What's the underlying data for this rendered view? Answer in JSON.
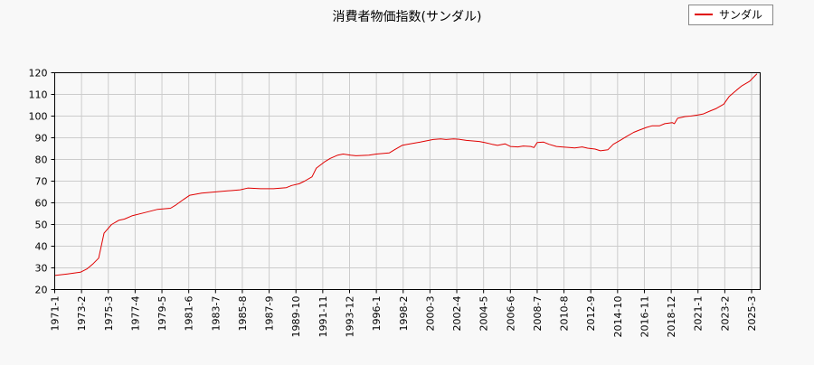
{
  "chart_data": {
    "type": "line",
    "title": "消費者物価指数(サンダル)",
    "xlabel": "",
    "ylabel": "",
    "ylim": [
      20,
      120
    ],
    "y_ticks": [
      20,
      30,
      40,
      50,
      60,
      70,
      80,
      90,
      100,
      110,
      120
    ],
    "x_range": [
      "1971-01",
      "2025-08"
    ],
    "x_tick_labels": [
      "1971-1",
      "1973-2",
      "1975-3",
      "1977-4",
      "1979-5",
      "1981-6",
      "1983-7",
      "1985-8",
      "1987-9",
      "1989-10",
      "1991-11",
      "1993-12",
      "1996-1",
      "1998-2",
      "2000-3",
      "2002-4",
      "2004-5",
      "2006-6",
      "2008-7",
      "2010-8",
      "2012-9",
      "2014-10",
      "2016-11",
      "2018-12",
      "2021-1",
      "2023-2",
      "2025-3"
    ],
    "grid": true,
    "legend_position": "top-right",
    "colors": {
      "series": "#e00000",
      "grid": "#cccccc",
      "axes": "#000000"
    },
    "series": [
      {
        "name": "サンダル",
        "points": [
          [
            "1971-01",
            26.5
          ],
          [
            "1972-01",
            27.2
          ],
          [
            "1973-01",
            28.0
          ],
          [
            "1973-07",
            29.5
          ],
          [
            "1974-01",
            32.0
          ],
          [
            "1974-06",
            34.5
          ],
          [
            "1974-11",
            46.0
          ],
          [
            "1975-06",
            50.0
          ],
          [
            "1976-01",
            52.0
          ],
          [
            "1976-06",
            52.5
          ],
          [
            "1977-01",
            54.0
          ],
          [
            "1978-01",
            55.5
          ],
          [
            "1979-01",
            57.0
          ],
          [
            "1980-01",
            57.5
          ],
          [
            "1980-06",
            59.0
          ],
          [
            "1981-01",
            61.5
          ],
          [
            "1981-07",
            63.5
          ],
          [
            "1982-06",
            64.5
          ],
          [
            "1983-06",
            65.0
          ],
          [
            "1984-06",
            65.5
          ],
          [
            "1985-06",
            66.0
          ],
          [
            "1986-01",
            66.8
          ],
          [
            "1987-01",
            66.5
          ],
          [
            "1988-01",
            66.5
          ],
          [
            "1989-01",
            67.0
          ],
          [
            "1989-06",
            68.0
          ],
          [
            "1990-01",
            68.8
          ],
          [
            "1990-06",
            70.0
          ],
          [
            "1991-01",
            72.0
          ],
          [
            "1991-05",
            76.0
          ],
          [
            "1992-01",
            79.0
          ],
          [
            "1992-06",
            80.5
          ],
          [
            "1993-01",
            82.0
          ],
          [
            "1993-06",
            82.5
          ],
          [
            "1994-01",
            82.0
          ],
          [
            "1994-06",
            81.7
          ],
          [
            "1995-06",
            82.0
          ],
          [
            "1996-01",
            82.5
          ],
          [
            "1997-01",
            83.0
          ],
          [
            "1997-06",
            84.5
          ],
          [
            "1998-01",
            86.5
          ],
          [
            "1998-06",
            87.0
          ],
          [
            "1999-06",
            88.0
          ],
          [
            "2000-06",
            89.2
          ],
          [
            "2001-01",
            89.5
          ],
          [
            "2001-06",
            89.2
          ],
          [
            "2002-01",
            89.5
          ],
          [
            "2002-06",
            89.3
          ],
          [
            "2003-01",
            88.8
          ],
          [
            "2004-01",
            88.3
          ],
          [
            "2004-06",
            87.8
          ],
          [
            "2005-01",
            87.0
          ],
          [
            "2005-06",
            86.5
          ],
          [
            "2006-01",
            87.2
          ],
          [
            "2006-06",
            86.0
          ],
          [
            "2007-01",
            85.8
          ],
          [
            "2007-06",
            86.2
          ],
          [
            "2008-01",
            86.0
          ],
          [
            "2008-04",
            85.5
          ],
          [
            "2008-07",
            87.8
          ],
          [
            "2009-01",
            88.0
          ],
          [
            "2009-06",
            87.0
          ],
          [
            "2010-01",
            86.0
          ],
          [
            "2010-06",
            85.8
          ],
          [
            "2011-01",
            85.5
          ],
          [
            "2011-06",
            85.3
          ],
          [
            "2012-01",
            85.8
          ],
          [
            "2012-06",
            85.2
          ],
          [
            "2013-01",
            84.8
          ],
          [
            "2013-06",
            84.0
          ],
          [
            "2014-01",
            84.5
          ],
          [
            "2014-06",
            87.0
          ],
          [
            "2015-01",
            89.0
          ],
          [
            "2015-06",
            90.5
          ],
          [
            "2016-01",
            92.5
          ],
          [
            "2016-06",
            93.5
          ],
          [
            "2017-01",
            94.8
          ],
          [
            "2017-06",
            95.5
          ],
          [
            "2018-01",
            95.5
          ],
          [
            "2018-06",
            96.5
          ],
          [
            "2019-01",
            97.0
          ],
          [
            "2019-03",
            96.5
          ],
          [
            "2019-06",
            99.0
          ],
          [
            "2020-01",
            99.8
          ],
          [
            "2020-06",
            100.0
          ],
          [
            "2021-01",
            100.5
          ],
          [
            "2021-06",
            101.0
          ],
          [
            "2022-01",
            102.5
          ],
          [
            "2022-06",
            103.5
          ],
          [
            "2023-01",
            105.5
          ],
          [
            "2023-06",
            109.0
          ],
          [
            "2024-01",
            112.0
          ],
          [
            "2024-06",
            114.0
          ],
          [
            "2025-01",
            116.0
          ],
          [
            "2025-06",
            118.5
          ],
          [
            "2025-08",
            119.5
          ]
        ]
      }
    ]
  }
}
